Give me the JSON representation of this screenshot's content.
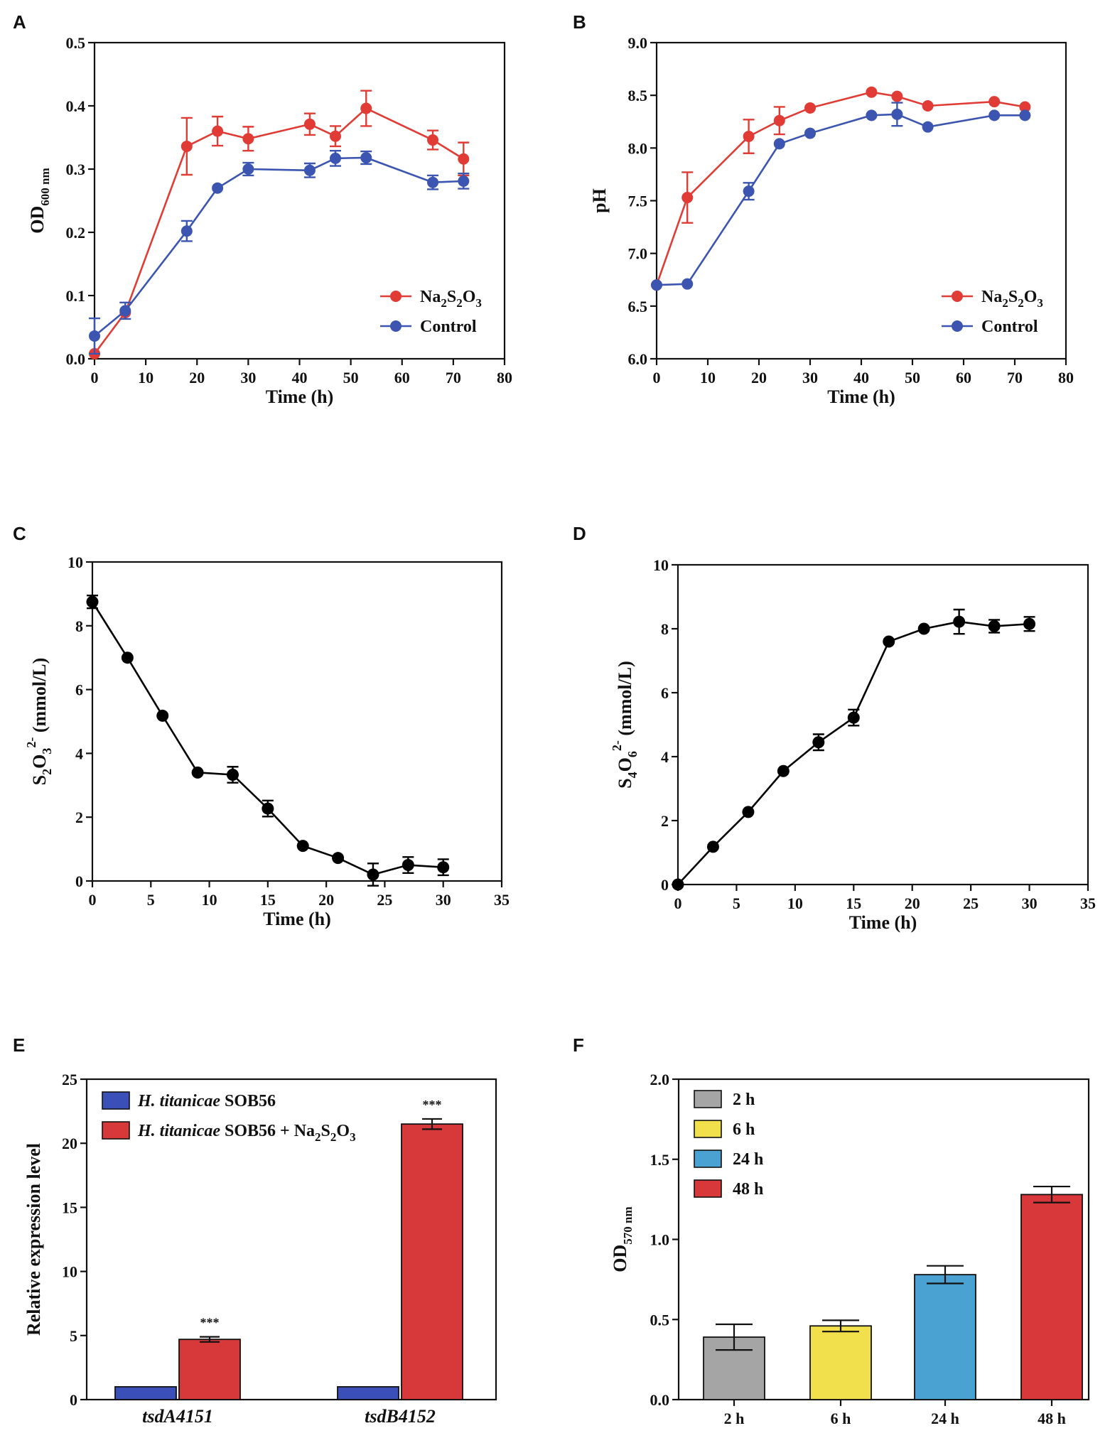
{
  "figure": {
    "panel_labels": [
      "A",
      "B",
      "C",
      "D",
      "E",
      "F"
    ]
  },
  "chart_data": [
    {
      "id": "A",
      "type": "line",
      "title": "",
      "xlabel": "Time (h)",
      "ylabel": "OD",
      "ylabel_sub": "600 nm",
      "xlim": [
        0,
        80
      ],
      "ylim": [
        0,
        0.5
      ],
      "xticks": [
        "0",
        "10",
        "20",
        "30",
        "40",
        "50",
        "60",
        "70",
        "80"
      ],
      "yticks": [
        "0.0",
        "0.1",
        "0.2",
        "0.3",
        "0.4",
        "0.5"
      ],
      "legend_position": "bottom-right",
      "series": [
        {
          "name": "Na2S2O3",
          "legend_parts": [
            "Na",
            "2",
            "S",
            "2",
            "O",
            "3"
          ],
          "color": "#e03c35",
          "x": [
            0,
            6,
            18,
            24,
            30,
            42,
            47,
            53,
            66,
            72
          ],
          "y": [
            0.008,
            0.073,
            0.336,
            0.36,
            0.348,
            0.371,
            0.352,
            0.396,
            0.346,
            0.316
          ],
          "err": [
            0.002,
            0.006,
            0.045,
            0.023,
            0.019,
            0.017,
            0.016,
            0.028,
            0.015,
            0.026
          ]
        },
        {
          "name": "Control",
          "legend_parts": [
            "Control"
          ],
          "color": "#3b55b0",
          "x": [
            0,
            6,
            18,
            24,
            30,
            42,
            47,
            53,
            66,
            72
          ],
          "y": [
            0.036,
            0.076,
            0.202,
            0.27,
            0.3,
            0.298,
            0.317,
            0.318,
            0.279,
            0.281
          ],
          "err": [
            0.028,
            0.013,
            0.016,
            0.004,
            0.01,
            0.011,
            0.012,
            0.01,
            0.011,
            0.012
          ]
        }
      ]
    },
    {
      "id": "B",
      "type": "line",
      "title": "",
      "xlabel": "Time (h)",
      "ylabel": "pH",
      "ylabel_sub": "",
      "xlim": [
        0,
        80
      ],
      "ylim": [
        6.0,
        9.0
      ],
      "xticks": [
        "0",
        "10",
        "20",
        "30",
        "40",
        "50",
        "60",
        "70",
        "80"
      ],
      "yticks": [
        "6.0",
        "6.5",
        "7.0",
        "7.5",
        "8.0",
        "8.5",
        "9.0"
      ],
      "legend_position": "bottom-right",
      "series": [
        {
          "name": "Na2S2O3",
          "legend_parts": [
            "Na",
            "2",
            "S",
            "2",
            "O",
            "3"
          ],
          "color": "#e03c35",
          "x": [
            0,
            6,
            18,
            24,
            30,
            42,
            47,
            53,
            66,
            72
          ],
          "y": [
            6.7,
            7.53,
            8.11,
            8.26,
            8.38,
            8.53,
            8.49,
            8.4,
            8.44,
            8.39
          ],
          "err": [
            0.01,
            0.24,
            0.16,
            0.13,
            0.01,
            0.02,
            0.03,
            0.02,
            0.02,
            0.02
          ]
        },
        {
          "name": "Control",
          "legend_parts": [
            "Control"
          ],
          "color": "#3b55b0",
          "x": [
            0,
            6,
            18,
            24,
            30,
            42,
            47,
            53,
            66,
            72
          ],
          "y": [
            6.7,
            6.71,
            7.59,
            8.04,
            8.14,
            8.31,
            8.32,
            8.2,
            8.31,
            8.31
          ],
          "err": [
            0.01,
            0.01,
            0.08,
            0.04,
            0.02,
            0.02,
            0.11,
            0.02,
            0.02,
            0.02
          ]
        }
      ]
    },
    {
      "id": "C",
      "type": "line",
      "title": "",
      "xlabel": "Time (h)",
      "ylabel": "S2O3 2- (mmol/L)",
      "ylabel_parts": [
        "S",
        "2",
        "O",
        "3",
        "2-",
        " (mmol/L)"
      ],
      "xlim": [
        0,
        35
      ],
      "ylim": [
        0,
        10
      ],
      "xticks": [
        "0",
        "5",
        "10",
        "15",
        "20",
        "25",
        "30",
        "35"
      ],
      "yticks": [
        "0",
        "2",
        "4",
        "6",
        "8",
        "10"
      ],
      "series": [
        {
          "name": "S2O3",
          "color": "#000000",
          "x": [
            0,
            3,
            6,
            9,
            12,
            15,
            18,
            21,
            24,
            27,
            30
          ],
          "y": [
            8.75,
            7.0,
            5.18,
            3.4,
            3.33,
            2.27,
            1.1,
            0.72,
            0.2,
            0.5,
            0.43
          ],
          "err": [
            0.2,
            0.05,
            0.05,
            0.05,
            0.25,
            0.25,
            0.05,
            0.05,
            0.35,
            0.25,
            0.25
          ]
        }
      ]
    },
    {
      "id": "D",
      "type": "line",
      "title": "",
      "xlabel": "Time (h)",
      "ylabel": "S4O6 2- (mmol/L)",
      "ylabel_parts": [
        "S",
        "4",
        "O",
        "6",
        "2-",
        " (mmol/L)"
      ],
      "xlim": [
        0,
        35
      ],
      "ylim": [
        0,
        10
      ],
      "xticks": [
        "0",
        "5",
        "10",
        "15",
        "20",
        "25",
        "30",
        "35"
      ],
      "yticks": [
        "0",
        "2",
        "4",
        "6",
        "8",
        "10"
      ],
      "series": [
        {
          "name": "S4O6",
          "color": "#000000",
          "x": [
            0,
            3,
            6,
            9,
            12,
            15,
            18,
            21,
            24,
            27,
            30
          ],
          "y": [
            0.0,
            1.18,
            2.27,
            3.55,
            4.45,
            5.22,
            7.6,
            8.0,
            8.22,
            8.08,
            8.15
          ],
          "err": [
            0.02,
            0.05,
            0.05,
            0.05,
            0.25,
            0.25,
            0.05,
            0.05,
            0.38,
            0.2,
            0.22
          ]
        }
      ]
    },
    {
      "id": "E",
      "type": "bar",
      "title": "",
      "xlabel": "",
      "ylabel": "Relative expression level",
      "ylim": [
        0,
        25
      ],
      "yticks": [
        "0",
        "5",
        "10",
        "15",
        "20",
        "25"
      ],
      "categories": [
        "tsdA4151",
        "tsdB4152"
      ],
      "legend_position": "top-left",
      "series": [
        {
          "name": "H. titanicae SOB56",
          "legend_italic": "H. titanicae",
          "legend_rest": " SOB56",
          "color": "#3b4fb8",
          "values": [
            1.0,
            1.0
          ],
          "err": [
            0,
            0
          ]
        },
        {
          "name": "H. titanicae SOB56 + Na2S2O3",
          "legend_italic": "H. titanicae",
          "legend_rest": " SOB56 + Na",
          "legend_sub": [
            "2",
            "2",
            "3"
          ],
          "color": "#d7383a",
          "values": [
            4.7,
            21.5
          ],
          "err": [
            0.2,
            0.4
          ]
        }
      ],
      "annotations": [
        "***",
        "***"
      ]
    },
    {
      "id": "F",
      "type": "bar",
      "title": "",
      "xlabel": "",
      "ylabel": "OD",
      "ylabel_sub": "570 nm",
      "ylim": [
        0,
        2.0
      ],
      "yticks": [
        "0.0",
        "0.5",
        "1.0",
        "1.5",
        "2.0"
      ],
      "categories": [
        "2 h",
        "6 h",
        "24 h",
        "48 h"
      ],
      "values": [
        0.39,
        0.46,
        0.78,
        1.28
      ],
      "err": [
        0.08,
        0.035,
        0.055,
        0.05
      ],
      "colors": [
        "#a5a5a5",
        "#f2df4c",
        "#4aa2d2",
        "#d8383a"
      ],
      "legend": [
        "2 h",
        "6 h",
        "24 h",
        "48 h"
      ],
      "legend_position": "top-left"
    }
  ]
}
